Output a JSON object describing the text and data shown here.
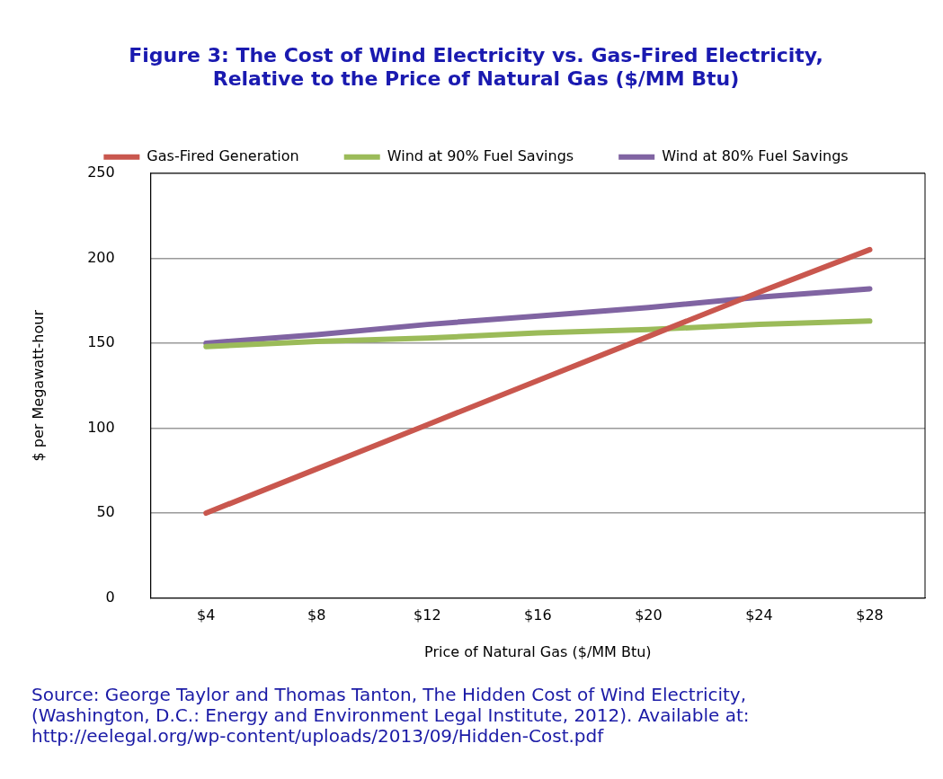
{
  "chart_data": {
    "type": "line",
    "title": [
      "Figure 3: The Cost of Wind Electricity vs. Gas-Fired Electricity,",
      "Relative to the Price of Natural Gas ($/MM Btu)"
    ],
    "xlabel": "Price of Natural Gas ($/MM Btu)",
    "ylabel": "$ per Megawatt-hour",
    "categories": [
      "$4",
      "$8",
      "$12",
      "$16",
      "$20",
      "$24",
      "$28"
    ],
    "series": [
      {
        "name": "Gas-Fired Generation",
        "color": "#c9574e",
        "values": [
          50,
          76,
          102,
          128,
          154,
          180,
          205
        ]
      },
      {
        "name": "Wind at 90% Fuel Savings",
        "color": "#9bbb59",
        "values": [
          148,
          151,
          153,
          156,
          158,
          161,
          163
        ]
      },
      {
        "name": "Wind at 80% Fuel Savings",
        "color": "#8064a2",
        "values": [
          150,
          155,
          161,
          166,
          171,
          177,
          182
        ]
      }
    ],
    "ylim": [
      0,
      250
    ],
    "yticks": [
      0,
      50,
      100,
      150,
      200,
      250
    ],
    "grid": "y",
    "legend": "top",
    "marker": "none",
    "line_style": "solid",
    "annotations": [
      "Source: George Taylor and Thomas Tanton, The Hidden Cost of Wind Electricity,",
      "(Washington, D.C.: Energy and Environment Legal Institute, 2012). Available at:",
      "http://eelegal.org/wp-content/uploads/2013/09/Hidden-Cost.pdf"
    ]
  }
}
